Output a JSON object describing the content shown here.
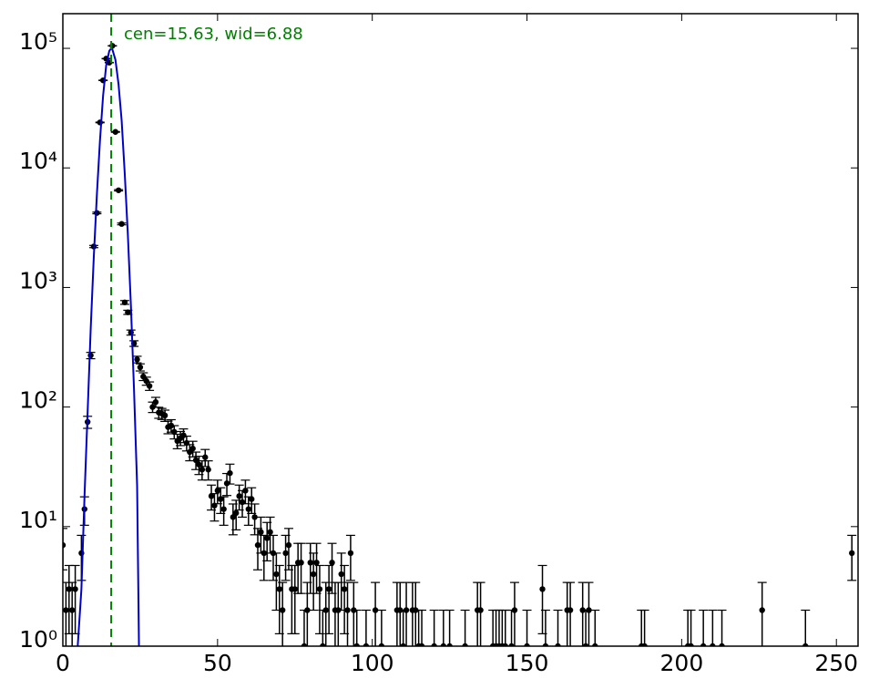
{
  "chart_data": {
    "type": "errorbar",
    "xlim": [
      0,
      257
    ],
    "ylim": [
      1,
      195000
    ],
    "log_y": true,
    "xticks": [
      0,
      50,
      100,
      150,
      200,
      250
    ],
    "yticks": [
      {
        "value": 1,
        "label": "10⁰"
      },
      {
        "value": 10,
        "label": "10¹"
      },
      {
        "value": 100,
        "label": "10²"
      },
      {
        "value": 1000,
        "label": "10³"
      },
      {
        "value": 10000,
        "label": "10⁴"
      },
      {
        "value": 100000,
        "label": "10⁵"
      }
    ],
    "series": [
      {
        "color": "#000000",
        "x": [
          0,
          1,
          2,
          3,
          4,
          6,
          7,
          8,
          9,
          10,
          11,
          12,
          13,
          14,
          15,
          16,
          17,
          18,
          19,
          20,
          21,
          22,
          23,
          24,
          25,
          26,
          27,
          28,
          29,
          30,
          31,
          32,
          33,
          34,
          35,
          36,
          37,
          38,
          39,
          40,
          41,
          42,
          43,
          44,
          45,
          46,
          47,
          48,
          49,
          50,
          51,
          52,
          53,
          54,
          55,
          56,
          57,
          58,
          59,
          60,
          61,
          62,
          63,
          64,
          65,
          66,
          67,
          68,
          69,
          70,
          71,
          72,
          73,
          74,
          75,
          76,
          77,
          78,
          79,
          80,
          81,
          82,
          83,
          84,
          85,
          86,
          87,
          88,
          89,
          90,
          91,
          92,
          93,
          94,
          95,
          98,
          101,
          103,
          108,
          109,
          110,
          111,
          113,
          114,
          115,
          116,
          120,
          123,
          125,
          130,
          134,
          135,
          139,
          140,
          141,
          142,
          143,
          145,
          146,
          150,
          155,
          156,
          160,
          163,
          164,
          168,
          169,
          170,
          172,
          187,
          188,
          202,
          203,
          207,
          210,
          213,
          226,
          240,
          255
        ],
        "values": [
          7,
          2,
          3,
          2,
          3,
          6,
          14,
          75,
          270,
          2200,
          4200,
          24000,
          54000,
          82000,
          76000,
          105000,
          20000,
          6500,
          3400,
          750,
          620,
          420,
          340,
          250,
          215,
          180,
          165,
          150,
          100,
          110,
          90,
          88,
          85,
          68,
          70,
          62,
          52,
          55,
          58,
          50,
          42,
          45,
          36,
          33,
          30,
          38,
          30,
          18,
          15,
          20,
          17,
          14,
          23,
          28,
          12,
          13,
          18,
          16,
          20,
          14,
          17,
          12,
          7,
          9,
          6,
          8,
          9,
          6,
          4,
          3,
          2,
          6,
          7,
          3,
          3,
          5,
          5,
          1,
          2,
          5,
          4,
          5,
          3,
          1,
          2,
          3,
          5,
          2,
          2,
          4,
          3,
          2,
          6,
          2,
          1,
          1,
          2,
          1,
          2,
          2,
          1,
          2,
          2,
          2,
          1,
          1,
          1,
          1,
          1,
          1,
          2,
          2,
          1,
          1,
          1,
          1,
          1,
          1,
          2,
          1,
          3,
          1,
          1,
          2,
          2,
          2,
          1,
          2,
          1,
          1,
          1,
          1,
          1,
          1,
          1,
          1,
          2,
          1,
          6
        ],
        "errors": [
          2.65,
          1.41,
          1.73,
          1.41,
          1.73,
          2.45,
          3.74,
          8.66,
          16.4,
          46.9,
          64.8,
          155,
          232,
          286,
          276,
          324,
          141,
          80.6,
          58.3,
          27.4,
          24.9,
          20.5,
          18.4,
          15.8,
          14.7,
          13.4,
          12.8,
          12.2,
          10,
          10.5,
          9.49,
          9.38,
          9.22,
          8.25,
          8.37,
          7.87,
          7.21,
          7.42,
          7.62,
          7.07,
          6.48,
          6.71,
          6,
          5.74,
          5.48,
          6.16,
          5.48,
          4.24,
          3.87,
          4.47,
          4.12,
          3.74,
          4.8,
          5.29,
          3.46,
          3.61,
          4.24,
          4,
          4.47,
          3.74,
          4.12,
          3.46,
          2.65,
          3,
          2.45,
          2.83,
          3,
          2.45,
          2,
          1.73,
          1.41,
          2.45,
          2.65,
          1.73,
          1.73,
          2.24,
          2.24,
          1,
          1.41,
          2.24,
          2,
          2.24,
          1.73,
          1,
          1.41,
          1.73,
          2.24,
          1.41,
          1.41,
          2,
          1.73,
          1.41,
          2.45,
          1.41,
          1,
          1,
          1.41,
          1,
          1.41,
          1.41,
          1,
          1.41,
          1.41,
          1.41,
          1,
          1,
          1,
          1,
          1,
          1,
          1.41,
          1.41,
          1,
          1,
          1,
          1,
          1,
          1,
          1.41,
          1,
          1.73,
          1,
          1,
          1.41,
          1.41,
          1.41,
          1,
          1.41,
          1,
          1,
          1,
          1,
          1,
          1,
          1,
          1,
          1.41,
          1,
          2.45
        ]
      }
    ],
    "fit": {
      "color": "#0000cc",
      "x": [
        4.8,
        6,
        7,
        8,
        9,
        10,
        11,
        12,
        13,
        14,
        15,
        15.63,
        16,
        17,
        18,
        19,
        20,
        21,
        22,
        23,
        24,
        24.6
      ],
      "values": [
        1,
        3,
        18,
        90,
        450,
        1800,
        6000,
        17000,
        40000,
        72000,
        95000,
        100000,
        98000,
        80000,
        50000,
        25000,
        9000,
        2800,
        700,
        140,
        22,
        1
      ]
    },
    "vline": {
      "value": 15.63,
      "color": "#008000"
    },
    "annotation": "cen=15.63, wid=6.88"
  }
}
